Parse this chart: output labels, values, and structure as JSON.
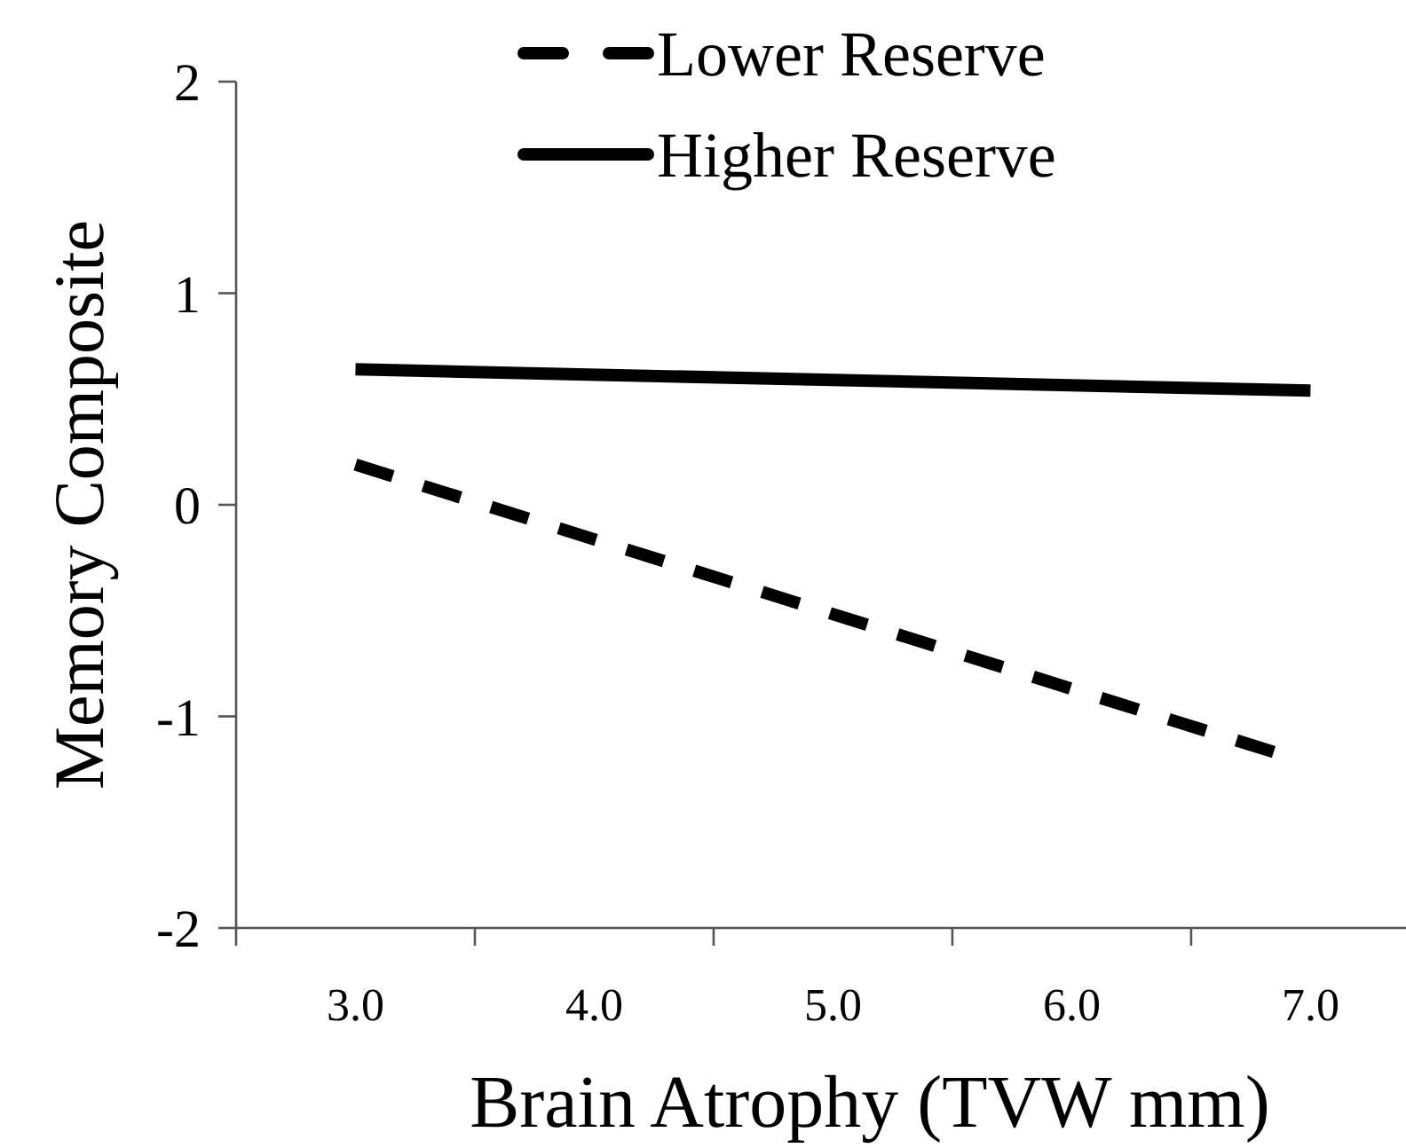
{
  "chart_data": {
    "type": "line",
    "xlabel": "Brain Atrophy (TVW mm)",
    "ylabel": "Memory Composite",
    "xlim": [
      2.5,
      7.4
    ],
    "xticks": [
      {
        "value": 2.5,
        "label": null
      },
      {
        "value": 3,
        "label": "3.0"
      },
      {
        "value": 3.5,
        "label": null
      },
      {
        "value": 4,
        "label": "4.0"
      },
      {
        "value": 4.5,
        "label": null
      },
      {
        "value": 5,
        "label": "5.0"
      },
      {
        "value": 5.5,
        "label": null
      },
      {
        "value": 6,
        "label": "6.0"
      },
      {
        "value": 6.5,
        "label": null
      },
      {
        "value": 7,
        "label": "7.0"
      }
    ],
    "ylim": [
      -2,
      2
    ],
    "yticks": [
      -2,
      -1,
      0,
      1,
      2
    ],
    "grid": false,
    "legend": "top",
    "marker": "none",
    "series": [
      {
        "name": "Lower Reserve",
        "color": "#000000",
        "line_style": "dashed",
        "x": [
          3,
          6.85
        ],
        "values": [
          0.19,
          -1.17
        ]
      },
      {
        "name": "Higher Reserve",
        "color": "#000000",
        "line_style": "solid",
        "x": [
          3,
          7
        ],
        "values": [
          0.64,
          0.54
        ]
      }
    ]
  }
}
